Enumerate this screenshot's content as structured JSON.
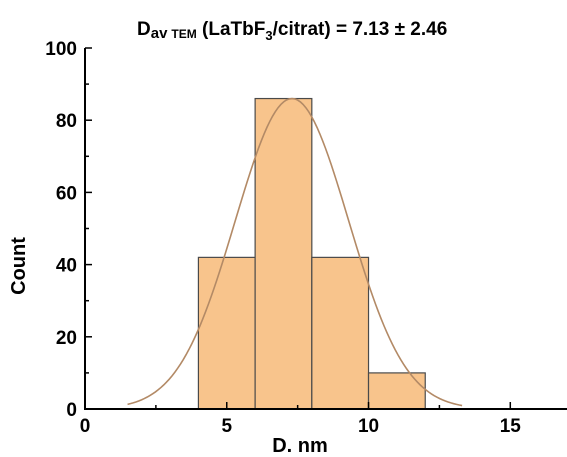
{
  "chart_data": {
    "type": "bar",
    "title_parts": {
      "main": "D",
      "sub1": "av",
      "sub2": "TEM",
      "mid": " (LaTbF",
      "sub3": "3",
      "tail": "/citrat) = 7.13 ± 2.46"
    },
    "xlabel": "D. nm",
    "ylabel": "Count",
    "xlim": [
      0,
      17
    ],
    "ylim": [
      0,
      100
    ],
    "xticks": [
      0,
      5,
      10,
      15
    ],
    "yticks": [
      0,
      20,
      40,
      60,
      80,
      100
    ],
    "bins": [
      {
        "start": 4,
        "end": 6,
        "count": 42
      },
      {
        "start": 6,
        "end": 8,
        "count": 86
      },
      {
        "start": 8,
        "end": 10,
        "count": 42
      },
      {
        "start": 10,
        "end": 12,
        "count": 10
      }
    ],
    "fit": {
      "type": "gaussian",
      "center": 7.3,
      "sigma": 2.0,
      "amplitude": 86,
      "range": [
        1.5,
        13.3
      ]
    },
    "colors": {
      "bar_fill": "#f8c48c",
      "bar_edge": "#4a4a4a",
      "fit_line": "#b38a66"
    },
    "grid": false,
    "legend": "none"
  }
}
